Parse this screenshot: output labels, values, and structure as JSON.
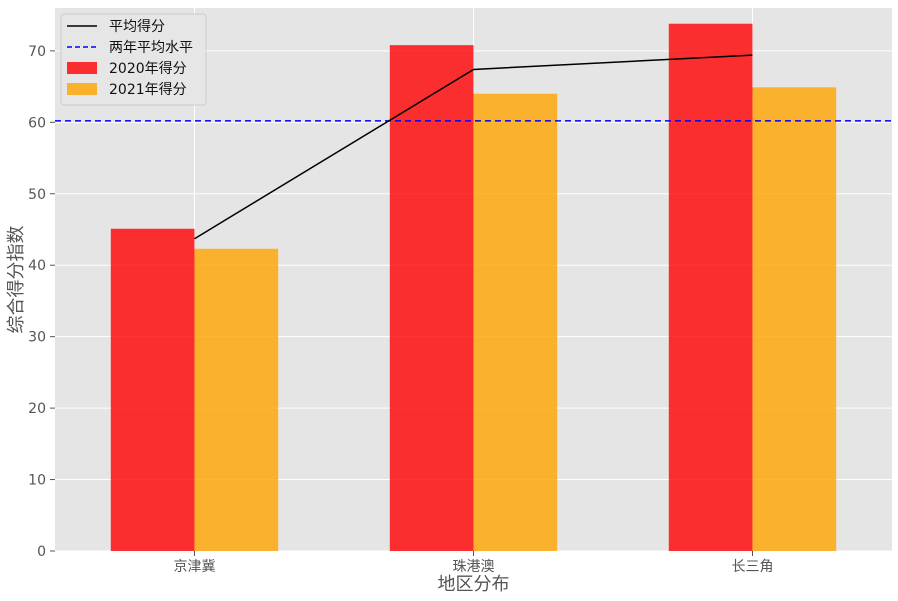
{
  "chart_data": {
    "type": "bar",
    "title": "",
    "xlabel": "地区分布",
    "ylabel": "综合得分指数",
    "categories": [
      "京津冀",
      "珠港澳",
      "长三角"
    ],
    "series": [
      {
        "name": "2020年得分",
        "kind": "bar",
        "values": [
          45.1,
          70.8,
          73.8
        ],
        "color": "#ff0000"
      },
      {
        "name": "2021年得分",
        "kind": "bar",
        "values": [
          42.3,
          64.0,
          64.9
        ],
        "color": "#ffa500"
      }
    ],
    "line_series": {
      "name": "平均得分",
      "values": [
        43.7,
        67.4,
        69.4
      ],
      "color": "#000000",
      "style": "solid"
    },
    "reference_line": {
      "name": "两年平均水平",
      "value": 60.2,
      "color": "#0000ff",
      "style": "dashed"
    },
    "ylim": [
      0,
      76
    ],
    "yticks": [
      0,
      10,
      20,
      30,
      40,
      50,
      60,
      70
    ],
    "grid": true,
    "legend_position": "top-left",
    "background": "#e5e5e5"
  }
}
